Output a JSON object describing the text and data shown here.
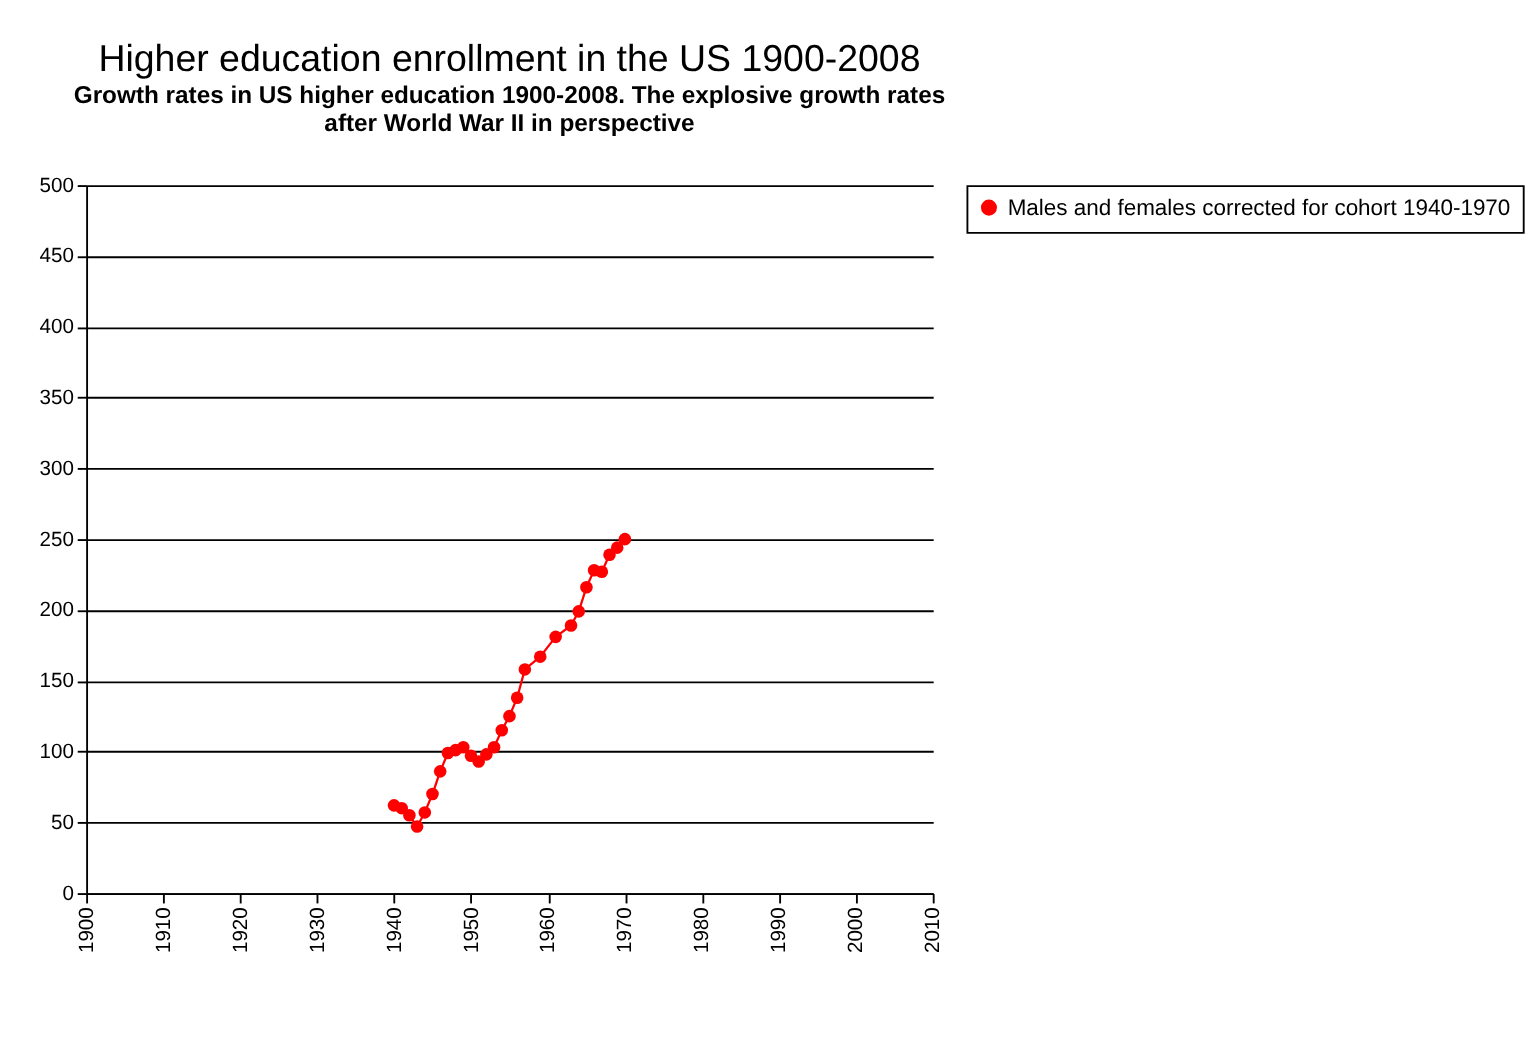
{
  "chart_data": {
    "type": "line",
    "title": "Higher education enrollment in the US 1900-2008",
    "subtitle": [
      "Growth rates in US higher education 1900-2008. The explosive growth rates",
      "after World War II in perspective"
    ],
    "x": [
      1940,
      1941,
      1942,
      1943,
      1944,
      1945,
      1946,
      1947,
      1948,
      1949,
      1950,
      1951,
      1952,
      1953,
      1954,
      1955,
      1956,
      1957,
      1959,
      1961,
      1963,
      1964,
      1965,
      1966,
      1967,
      1968,
      1969,
      1970
    ],
    "series": [
      {
        "name": "Males and females corrected for cohort 1940-1970",
        "color": "#ff0000",
        "values": [
          62,
          60,
          55,
          47,
          57,
          70,
          86,
          99,
          101,
          103,
          97,
          93,
          98,
          103,
          115,
          125,
          138,
          158,
          167,
          181,
          189,
          199,
          216,
          228,
          227,
          239,
          244,
          250
        ]
      }
    ],
    "xlim": [
      1900,
      2010
    ],
    "xticks": [
      1900,
      1910,
      1920,
      1930,
      1940,
      1950,
      1960,
      1970,
      1980,
      1990,
      2000,
      2010
    ],
    "ylim": [
      0,
      500
    ],
    "yticks": [
      0,
      50,
      100,
      150,
      200,
      250,
      300,
      350,
      400,
      450,
      500
    ],
    "grid": "y",
    "legend": "right",
    "marker": "circle",
    "line_style": "solid"
  }
}
